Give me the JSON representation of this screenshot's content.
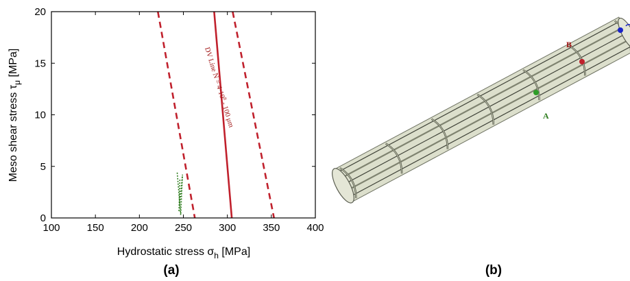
{
  "chart_data": {
    "type": "line",
    "xlabel": "Hydrostatic stress σ",
    "xlabel_sub": "h",
    "xlabel_unit": " [MPa]",
    "ylabel": "Meso shear stress τ",
    "ylabel_sub": "μ",
    "ylabel_unit": " [MPa]",
    "xlim": [
      100,
      400
    ],
    "ylim": [
      0,
      20
    ],
    "xticks": [
      100,
      150,
      200,
      250,
      300,
      350,
      400
    ],
    "yticks": [
      0,
      5,
      10,
      15,
      20
    ],
    "grid": false,
    "series": [
      {
        "style": "solid",
        "color": "#c0202c",
        "points": [
          [
            285,
            20
          ],
          [
            305,
            0
          ]
        ]
      },
      {
        "style": "dashed",
        "color": "#c0202c",
        "points": [
          [
            221,
            20
          ],
          [
            263,
            0
          ]
        ]
      },
      {
        "style": "dashed",
        "color": "#c0202c",
        "points": [
          [
            306,
            20
          ],
          [
            353,
            0
          ]
        ]
      },
      {
        "style": "dotted",
        "color": "#2e7d1e",
        "points": [
          [
            243,
            4.4
          ],
          [
            247,
            0.3
          ],
          [
            249,
            4.2
          ],
          [
            245,
            0.6
          ],
          [
            246,
            3.8
          ]
        ]
      }
    ],
    "annotation": {
      "line1": "DV Line   N = 4·10",
      "exp": "8",
      "line2": "  -   100 μm"
    }
  },
  "panels": {
    "a": "(a)",
    "b": "(b)"
  },
  "points": {
    "A": "A",
    "B": "B"
  },
  "colors": {
    "red": "#c0202c",
    "green": "#2e7d1e",
    "stent": "#c9cdb4",
    "blue": "#1a23c8"
  }
}
